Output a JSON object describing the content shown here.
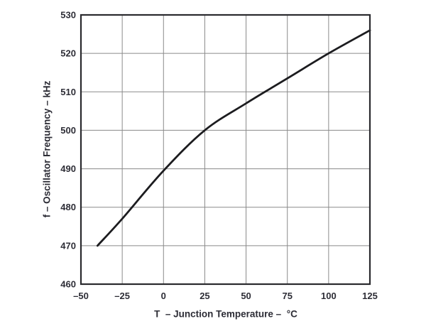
{
  "chart_data": {
    "type": "line",
    "title": "",
    "xlabel": "T  – Junction Temperature –  °C",
    "ylabel": "f – Oscillator Frequency – kHz",
    "x": [
      -40,
      -25,
      0,
      25,
      50,
      75,
      100,
      125
    ],
    "y": [
      470,
      477,
      489.5,
      500,
      507,
      513.5,
      520,
      526
    ],
    "xlim": [
      -50,
      125
    ],
    "ylim": [
      460,
      530
    ],
    "x_ticks": [
      -50,
      -25,
      0,
      25,
      50,
      75,
      100,
      125
    ],
    "x_tick_labels": [
      "–50",
      "–25",
      "0",
      "25",
      "50",
      "75",
      "100",
      "125"
    ],
    "y_ticks": [
      460,
      470,
      480,
      490,
      500,
      510,
      520,
      530
    ],
    "y_tick_labels": [
      "460",
      "470",
      "480",
      "490",
      "500",
      "510",
      "520",
      "530"
    ],
    "grid": true,
    "legend_position": "none",
    "colors": {
      "line": "#1c1c1f",
      "grid": "#8a8a8a",
      "frame": "#2a2a2e",
      "text": "#2d2d36",
      "background": "#ffffff"
    }
  }
}
